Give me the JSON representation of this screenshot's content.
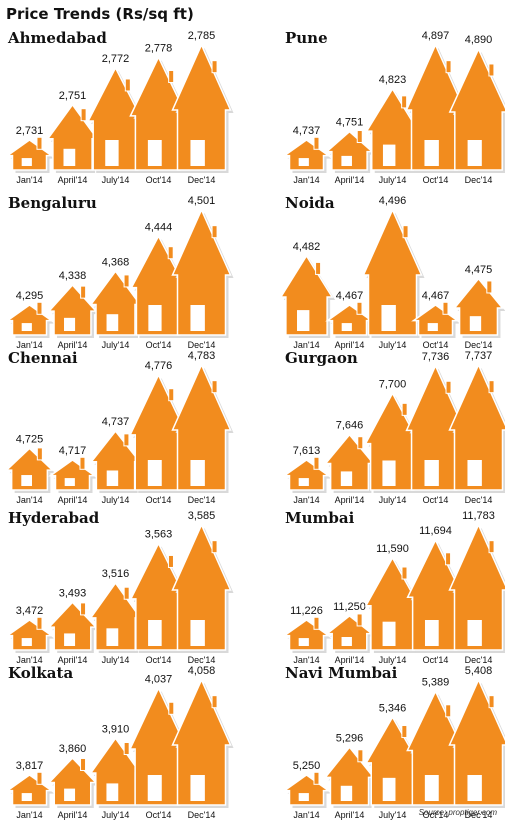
{
  "title": "Price Trends (Rs/sq ft)",
  "source": "Source: proptiger.com",
  "colors": {
    "house_fill": "#f28c1e",
    "house_stroke": "#ffffff",
    "door": "#ffffff",
    "text": "#111111"
  },
  "chart_data": [
    {
      "type": "bar",
      "title": "Ahmedabad",
      "categories": [
        "Jan'14",
        "April'14",
        "July'14",
        "Oct'14",
        "Dec'14"
      ],
      "values": [
        2731,
        2751,
        2772,
        2778,
        2785
      ],
      "value_labels": [
        "2,731",
        "2,751",
        "2,772",
        "2,778",
        "2,785"
      ]
    },
    {
      "type": "bar",
      "title": "Pune",
      "categories": [
        "Jan'14",
        "April'14",
        "July'14",
        "Oct'14",
        "Dec'14"
      ],
      "values": [
        4737,
        4751,
        4823,
        4897,
        4890
      ],
      "value_labels": [
        "4,737",
        "4,751",
        "4,823",
        "4,897",
        "4,890"
      ]
    },
    {
      "type": "bar",
      "title": "Bengaluru",
      "categories": [
        "Jan'14",
        "April'14",
        "July'14",
        "Oct'14",
        "Dec'14"
      ],
      "values": [
        4295,
        4338,
        4368,
        4444,
        4501
      ],
      "value_labels": [
        "4,295",
        "4,338",
        "4,368",
        "4,444",
        "4,501"
      ]
    },
    {
      "type": "bar",
      "title": "Noida",
      "categories": [
        "Jan'14",
        "April'14",
        "July'14",
        "Oct'14",
        "Dec'14"
      ],
      "values": [
        4482,
        4467,
        4496,
        4467,
        4475
      ],
      "value_labels": [
        "4,482",
        "4,467",
        "4,496",
        "4,467",
        "4,475"
      ]
    },
    {
      "type": "bar",
      "title": "Chennai",
      "categories": [
        "Jan'14",
        "April'14",
        "July'14",
        "Oct'14",
        "Dec'14"
      ],
      "values": [
        4725,
        4717,
        4737,
        4776,
        4783
      ],
      "value_labels": [
        "4,725",
        "4,717",
        "4,737",
        "4,776",
        "4,783"
      ]
    },
    {
      "type": "bar",
      "title": "Gurgaon",
      "categories": [
        "Jan'14",
        "April'14",
        "July'14",
        "Oct'14",
        "Dec'14"
      ],
      "values": [
        7613,
        7646,
        7700,
        7736,
        7737
      ],
      "value_labels": [
        "7,613",
        "7,646",
        "7,700",
        "7,736",
        "7,737"
      ]
    },
    {
      "type": "bar",
      "title": "Hyderabad",
      "categories": [
        "Jan'14",
        "April'14",
        "July'14",
        "Oct'14",
        "Dec'14"
      ],
      "values": [
        3472,
        3493,
        3516,
        3563,
        3585
      ],
      "value_labels": [
        "3,472",
        "3,493",
        "3,516",
        "3,563",
        "3,585"
      ]
    },
    {
      "type": "bar",
      "title": "Mumbai",
      "categories": [
        "Jan'14",
        "April'14",
        "July'14",
        "Oct'14",
        "Dec'14"
      ],
      "values": [
        11226,
        11250,
        11590,
        11694,
        11783
      ],
      "value_labels": [
        "11,226",
        "11,250",
        "11,590",
        "11,694",
        "11,783"
      ]
    },
    {
      "type": "bar",
      "title": "Kolkata",
      "categories": [
        "Jan'14",
        "April'14",
        "July'14",
        "Oct'14",
        "Dec'14"
      ],
      "values": [
        3817,
        3860,
        3910,
        4037,
        4058
      ],
      "value_labels": [
        "3,817",
        "3,860",
        "3,910",
        "4,037",
        "4,058"
      ]
    },
    {
      "type": "bar",
      "title": "Navi Mumbai",
      "categories": [
        "Jan'14",
        "April'14",
        "July'14",
        "Oct'14",
        "Dec'14"
      ],
      "values": [
        5250,
        5296,
        5346,
        5389,
        5408
      ],
      "value_labels": [
        "5,250",
        "5,296",
        "5,346",
        "5,389",
        "5,408"
      ]
    }
  ]
}
